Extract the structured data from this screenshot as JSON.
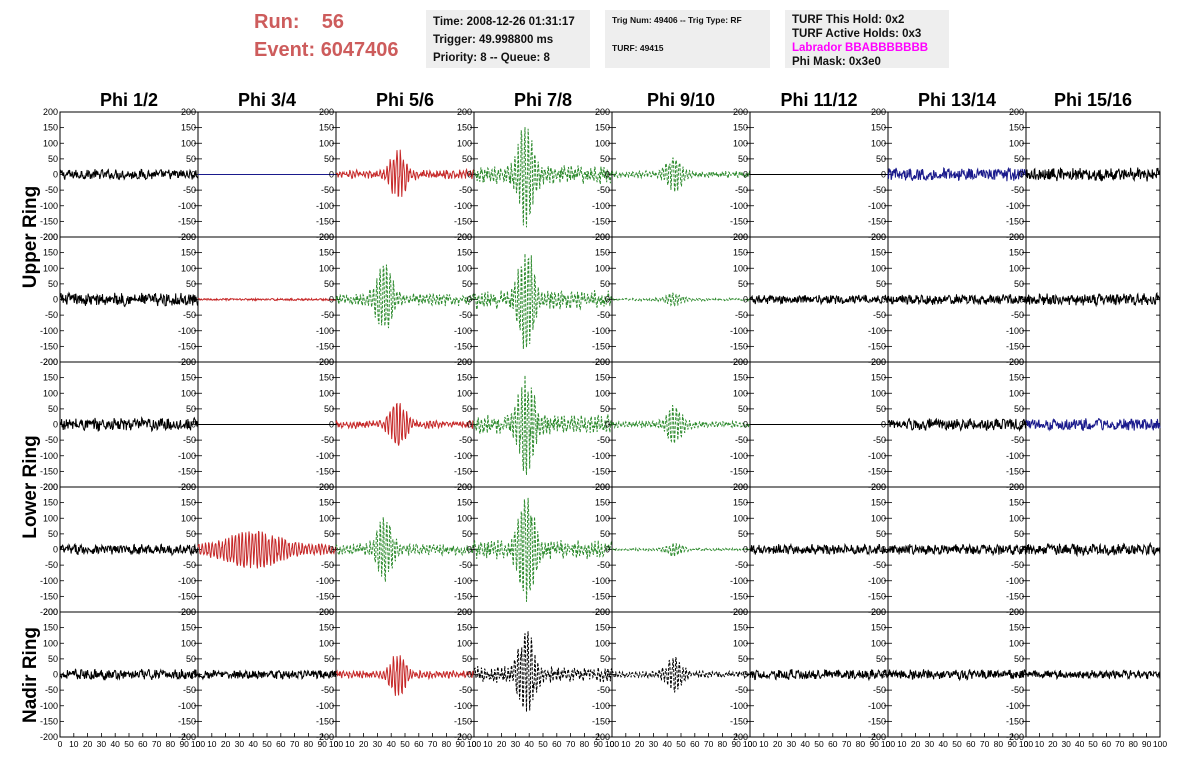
{
  "header": {
    "run_label": "Run:",
    "run_value": "56",
    "event_label": "Event:",
    "event_value": "6047406",
    "time": "Time: 2008-12-26 01:31:17",
    "trigger": "Trigger: 49.998800 ms",
    "priority": "Priority: 8 -- Queue: 8",
    "trig_num": "Trig Num: 49406 -- Trig Type: RF",
    "turf": "TURF: 49415",
    "turf_this_hold": "TURF This Hold: 0x2",
    "turf_active_holds": "TURF Active Holds: 0x3",
    "labrador": "Labrador BBABBBBBBB",
    "phi_mask": "Phi Mask: 0x3e0"
  },
  "colors": {
    "header_red": "#cd5c5c",
    "labrador_magenta": "#ff00ff",
    "trace_black": "#000000",
    "trace_red": "#c62828",
    "trace_green": "#2e8b2e",
    "trace_blue": "#1a1a8c"
  },
  "chart_data": {
    "type": "line",
    "title": "",
    "column_labels": [
      "Phi 1/2",
      "Phi 3/4",
      "Phi 5/6",
      "Phi 7/8",
      "Phi 9/10",
      "Phi 11/12",
      "Phi 13/14",
      "Phi 15/16"
    ],
    "row_labels": [
      "Upper Ring",
      "Lower Ring",
      "Nadir Ring"
    ],
    "xlim": [
      0,
      100
    ],
    "ylim": [
      -200,
      200
    ],
    "xticks": [
      0,
      10,
      20,
      30,
      40,
      50,
      60,
      70,
      80,
      90,
      100
    ],
    "yticks": [
      -200,
      -150,
      -100,
      -50,
      0,
      50,
      100,
      150,
      200
    ],
    "panel_rows": [
      [
        {
          "style": "noise",
          "color": "black",
          "amp": 14
        },
        {
          "style": "flat",
          "color": "blue"
        },
        {
          "style": "pulse",
          "color": "red",
          "amp": 75,
          "center": 45
        },
        {
          "style": "pulse",
          "color": "green",
          "amp": 150,
          "center": 38,
          "dashed": true
        },
        {
          "style": "pulse",
          "color": "green",
          "amp": 55,
          "center": 45,
          "dashed": true
        },
        {
          "style": "flat",
          "color": "black"
        },
        {
          "style": "noise",
          "color": "blue",
          "amp": 18
        },
        {
          "style": "noise",
          "color": "black",
          "amp": 18
        }
      ],
      [
        {
          "style": "noise",
          "color": "black",
          "amp": 18
        },
        {
          "style": "flatnoise",
          "color": "red",
          "amp": 3
        },
        {
          "style": "pulse",
          "color": "green",
          "amp": 100,
          "center": 35,
          "dashed": true
        },
        {
          "style": "pulse",
          "color": "green",
          "amp": 150,
          "center": 38,
          "dashed": true
        },
        {
          "style": "pulse",
          "color": "green",
          "amp": 20,
          "center": 45,
          "dashed": true
        },
        {
          "style": "noise",
          "color": "black",
          "amp": 12
        },
        {
          "style": "noise",
          "color": "black",
          "amp": 14
        },
        {
          "style": "noise",
          "color": "black",
          "amp": 16
        }
      ],
      [
        {
          "style": "noise",
          "color": "black",
          "amp": 18
        },
        {
          "style": "flat",
          "color": "black"
        },
        {
          "style": "pulse",
          "color": "red",
          "amp": 65,
          "center": 45
        },
        {
          "style": "pulse",
          "color": "green",
          "amp": 150,
          "center": 38,
          "dashed": true
        },
        {
          "style": "pulse",
          "color": "green",
          "amp": 55,
          "center": 45,
          "dashed": true
        },
        {
          "style": "flat",
          "color": "black"
        },
        {
          "style": "noise",
          "color": "black",
          "amp": 16
        },
        {
          "style": "noise",
          "color": "blue",
          "amp": 16
        }
      ],
      [
        {
          "style": "noise",
          "color": "black",
          "amp": 14
        },
        {
          "style": "pulse",
          "color": "red",
          "amp": 45,
          "center": 40,
          "wide": true
        },
        {
          "style": "pulse",
          "color": "green",
          "amp": 90,
          "center": 35,
          "dashed": true
        },
        {
          "style": "pulse",
          "color": "green",
          "amp": 150,
          "center": 38,
          "dashed": true
        },
        {
          "style": "pulse",
          "color": "green",
          "amp": 20,
          "center": 45,
          "dashed": true
        },
        {
          "style": "noise",
          "color": "black",
          "amp": 14
        },
        {
          "style": "noise",
          "color": "black",
          "amp": 14
        },
        {
          "style": "noise",
          "color": "black",
          "amp": 16
        }
      ],
      [
        {
          "style": "noise",
          "color": "black",
          "amp": 14
        },
        {
          "style": "noise",
          "color": "black",
          "amp": 12
        },
        {
          "style": "pulse",
          "color": "red",
          "amp": 60,
          "center": 45
        },
        {
          "style": "pulse",
          "color": "black",
          "amp": 125,
          "center": 38,
          "dashed": true
        },
        {
          "style": "pulse",
          "color": "black",
          "amp": 50,
          "center": 45,
          "dashed": true
        },
        {
          "style": "noise",
          "color": "black",
          "amp": 14
        },
        {
          "style": "noise",
          "color": "black",
          "amp": 14
        },
        {
          "style": "noise",
          "color": "black",
          "amp": 12
        }
      ]
    ]
  }
}
